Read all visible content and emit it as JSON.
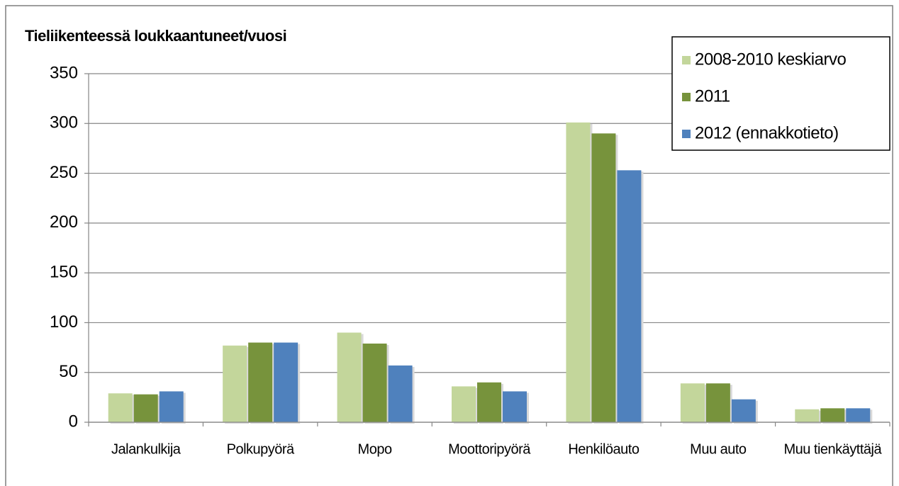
{
  "chart_data": {
    "type": "bar",
    "title": "Tieliikenteessä loukkaantuneet/vuosi",
    "categories": [
      "Jalankulkija",
      "Polkupyörä",
      "Mopo",
      "Moottoripyörä",
      "Henkilöauto",
      "Muu auto",
      "Muu tienkäyttäjä"
    ],
    "series": [
      {
        "name": "2008-2010 keskiarvo",
        "color": "#c3d69b",
        "values": [
          29,
          77,
          90,
          36,
          301,
          39,
          13
        ]
      },
      {
        "name": "2011",
        "color": "#77933c",
        "values": [
          28,
          80,
          79,
          40,
          290,
          39,
          14
        ]
      },
      {
        "name": "2012 (ennakkotieto)",
        "color": "#4f81bd",
        "values": [
          31,
          80,
          57,
          31,
          253,
          23,
          14
        ]
      }
    ],
    "ylim": [
      0,
      350
    ],
    "yticks": [
      0,
      50,
      100,
      150,
      200,
      250,
      300,
      350
    ],
    "grid": true,
    "legend": "top-right"
  }
}
